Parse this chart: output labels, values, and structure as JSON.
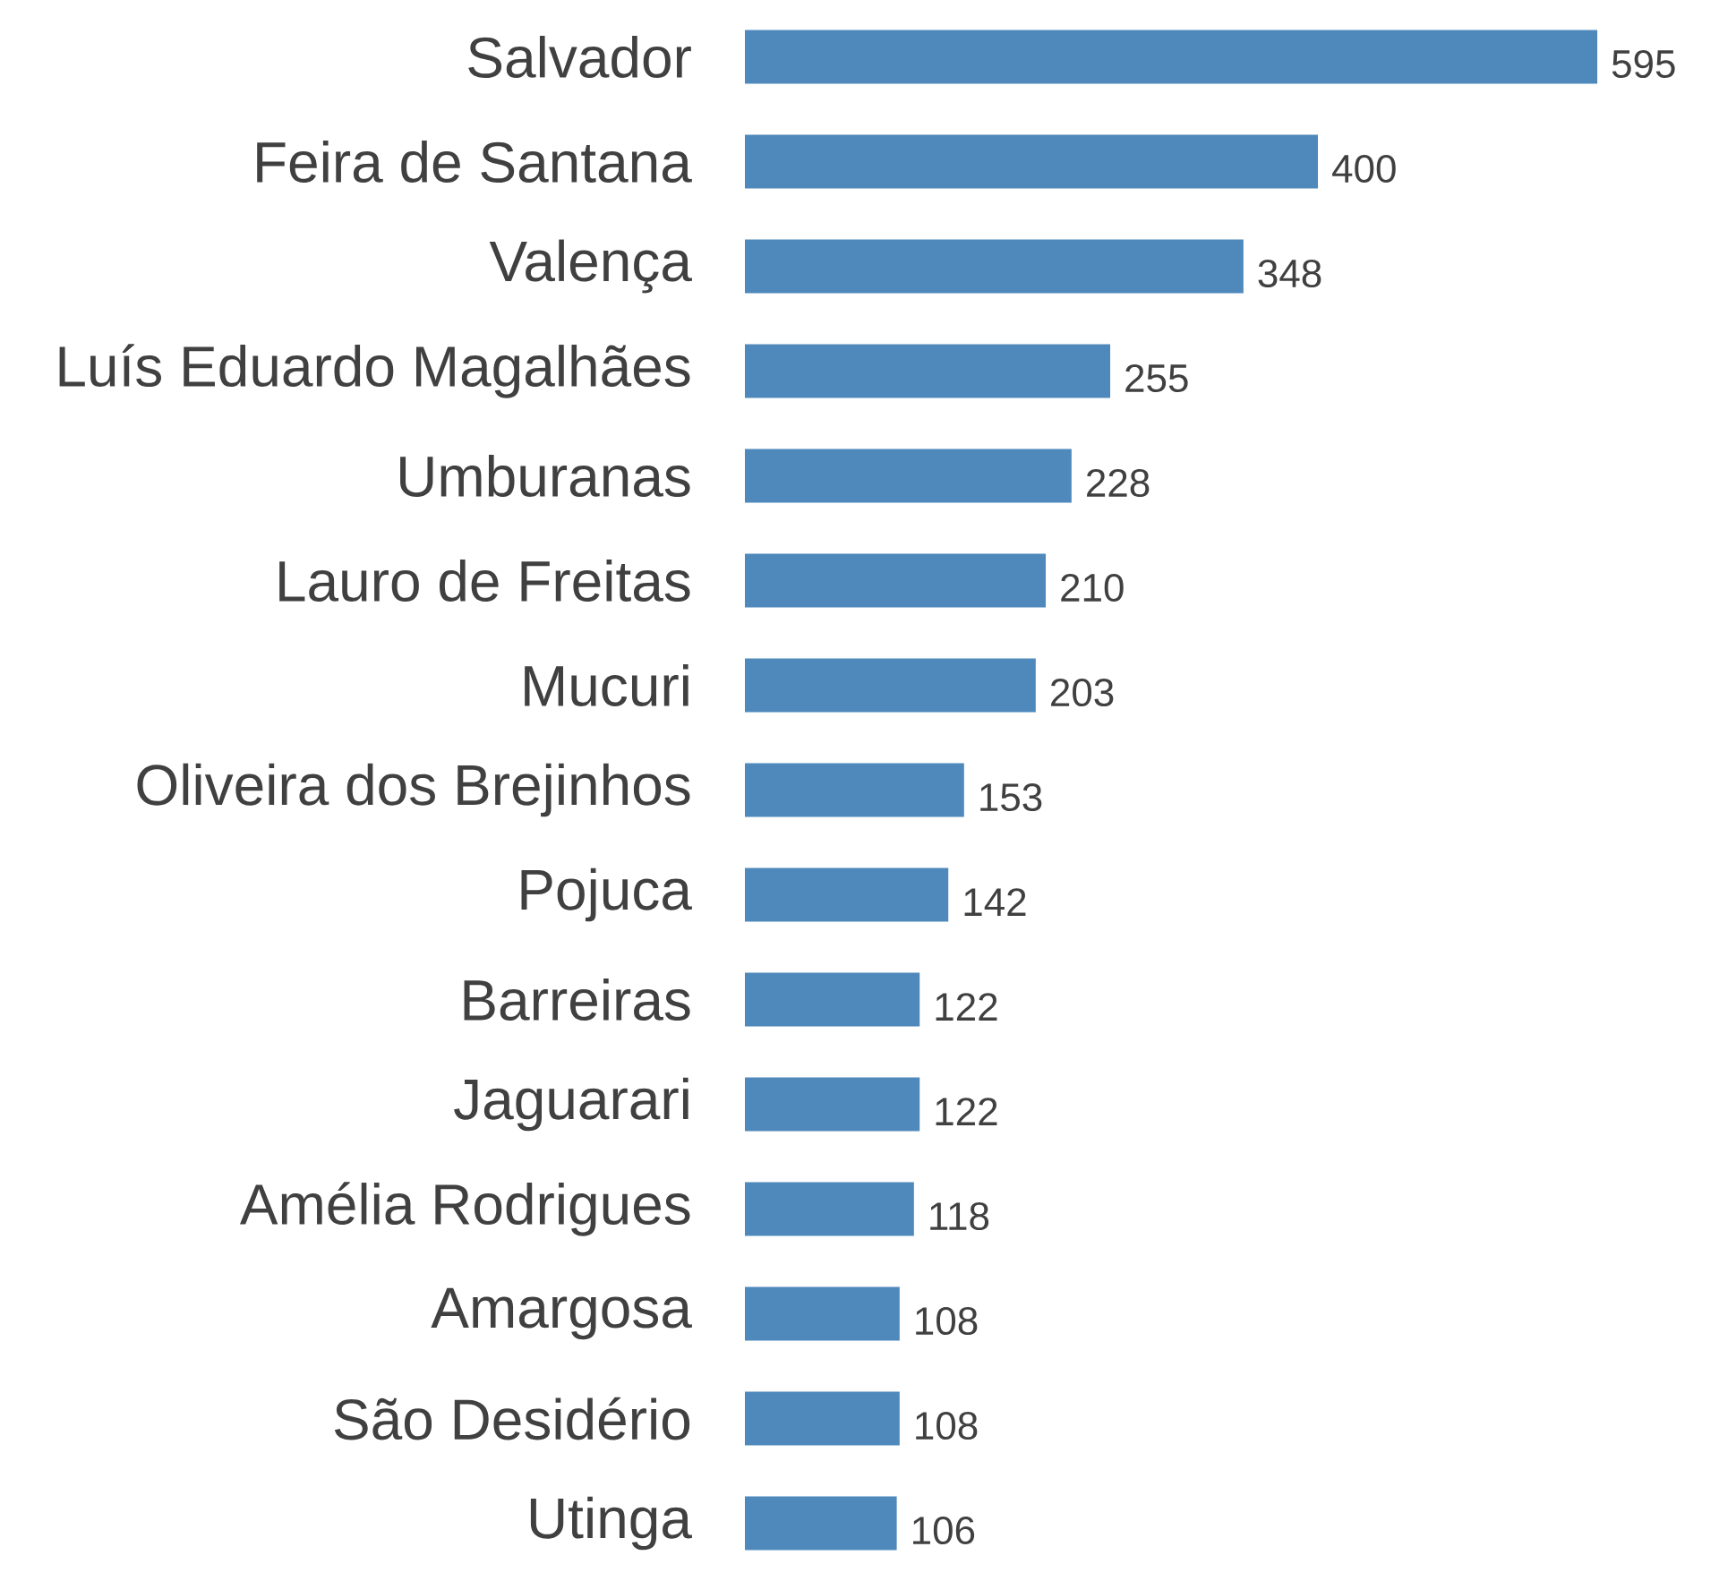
{
  "chart_data": {
    "type": "bar",
    "orientation": "horizontal",
    "data_labels": true,
    "color": "#4f89bb",
    "categories": [
      "Salvador",
      "Feira de Santana",
      "Valença",
      "Luís Eduardo Magalhães",
      "Umburanas",
      "Lauro de Freitas",
      "Mucuri",
      "Oliveira dos Brejinhos",
      "Pojuca",
      "Barreiras",
      "Jaguarari",
      "Amélia Rodrigues",
      "Amargosa",
      "São Desidério",
      "Utinga"
    ],
    "values": [
      595,
      400,
      348,
      255,
      228,
      210,
      203,
      153,
      142,
      122,
      122,
      118,
      108,
      108,
      106
    ]
  }
}
